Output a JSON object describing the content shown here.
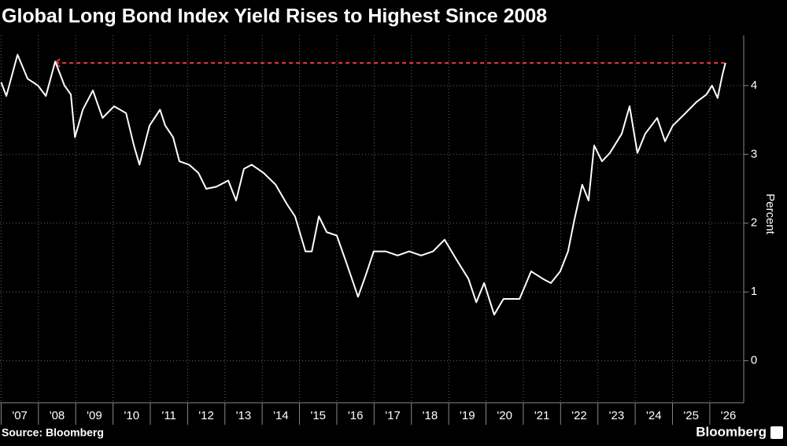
{
  "chart_data": {
    "type": "line",
    "title": "Global Long Bond Index Yield Rises to Highest Since 2008",
    "y_axis_label": "Percent",
    "source": "Source: Bloomberg",
    "brand": "Bloomberg",
    "xlim": [
      2006.97,
      2026.91
    ],
    "ylim": [
      -0.61,
      4.73
    ],
    "yticks": [
      0,
      1,
      2,
      3,
      4
    ],
    "xticks": [
      {
        "value": 2007,
        "label": "'07"
      },
      {
        "value": 2008,
        "label": "'08"
      },
      {
        "value": 2009,
        "label": "'09"
      },
      {
        "value": 2010,
        "label": "'10"
      },
      {
        "value": 2011,
        "label": "'11"
      },
      {
        "value": 2012,
        "label": "'12"
      },
      {
        "value": 2013,
        "label": "'13"
      },
      {
        "value": 2014,
        "label": "'14"
      },
      {
        "value": 2015,
        "label": "'15"
      },
      {
        "value": 2016,
        "label": "'16"
      },
      {
        "value": 2017,
        "label": "'17"
      },
      {
        "value": 2018,
        "label": "'18"
      },
      {
        "value": 2019,
        "label": "'19"
      },
      {
        "value": 2020,
        "label": "'20"
      },
      {
        "value": 2021,
        "label": "'21"
      },
      {
        "value": 2022,
        "label": "'22"
      },
      {
        "value": 2023,
        "label": "'23"
      },
      {
        "value": 2024,
        "label": "'24"
      },
      {
        "value": 2025,
        "label": "'25"
      },
      {
        "value": 2026,
        "label": "'26"
      }
    ],
    "grid": true,
    "reference_line": {
      "value": 4.33,
      "x": [
        2008.45,
        2026.42
      ],
      "color": "#e8353b"
    },
    "series": [
      {
        "name": "Global Long Bond Index Yield",
        "color": "#ffffff",
        "x": [
          2007.0,
          2007.14,
          2007.44,
          2007.71,
          2007.99,
          2008.2,
          2008.45,
          2008.7,
          2008.87,
          2008.98,
          2009.19,
          2009.46,
          2009.72,
          2010.03,
          2010.35,
          2010.56,
          2010.71,
          2010.98,
          2011.26,
          2011.4,
          2011.61,
          2011.78,
          2012.04,
          2012.29,
          2012.5,
          2012.77,
          2013.09,
          2013.3,
          2013.51,
          2013.72,
          2014.04,
          2014.36,
          2014.67,
          2014.88,
          2015.16,
          2015.33,
          2015.52,
          2015.73,
          2016.0,
          2016.26,
          2016.57,
          2016.78,
          2016.99,
          2017.31,
          2017.63,
          2017.94,
          2018.26,
          2018.58,
          2018.89,
          2019.21,
          2019.53,
          2019.74,
          2019.95,
          2020.22,
          2020.47,
          2020.9,
          2021.21,
          2021.53,
          2021.74,
          2021.99,
          2022.2,
          2022.37,
          2022.58,
          2022.75,
          2022.9,
          2023.11,
          2023.32,
          2023.64,
          2023.85,
          2024.06,
          2024.27,
          2024.59,
          2024.8,
          2025.01,
          2025.33,
          2025.64,
          2025.91,
          2026.06,
          2026.21,
          2026.34,
          2026.42
        ],
        "values": [
          4.05,
          3.85,
          4.45,
          4.1,
          4.0,
          3.85,
          4.35,
          4.0,
          3.87,
          3.25,
          3.65,
          3.93,
          3.53,
          3.7,
          3.6,
          3.13,
          2.85,
          3.42,
          3.65,
          3.42,
          3.25,
          2.9,
          2.85,
          2.73,
          2.5,
          2.53,
          2.62,
          2.33,
          2.79,
          2.85,
          2.73,
          2.56,
          2.27,
          2.1,
          1.59,
          1.59,
          2.1,
          1.87,
          1.82,
          1.42,
          0.93,
          1.25,
          1.59,
          1.59,
          1.53,
          1.59,
          1.53,
          1.59,
          1.76,
          1.47,
          1.19,
          0.85,
          1.13,
          0.67,
          0.9,
          0.9,
          1.3,
          1.19,
          1.13,
          1.3,
          1.59,
          2.05,
          2.56,
          2.33,
          3.13,
          2.9,
          3.02,
          3.3,
          3.7,
          3.02,
          3.3,
          3.53,
          3.19,
          3.42,
          3.59,
          3.76,
          3.87,
          4.0,
          3.82,
          4.16,
          4.33
        ]
      }
    ]
  }
}
